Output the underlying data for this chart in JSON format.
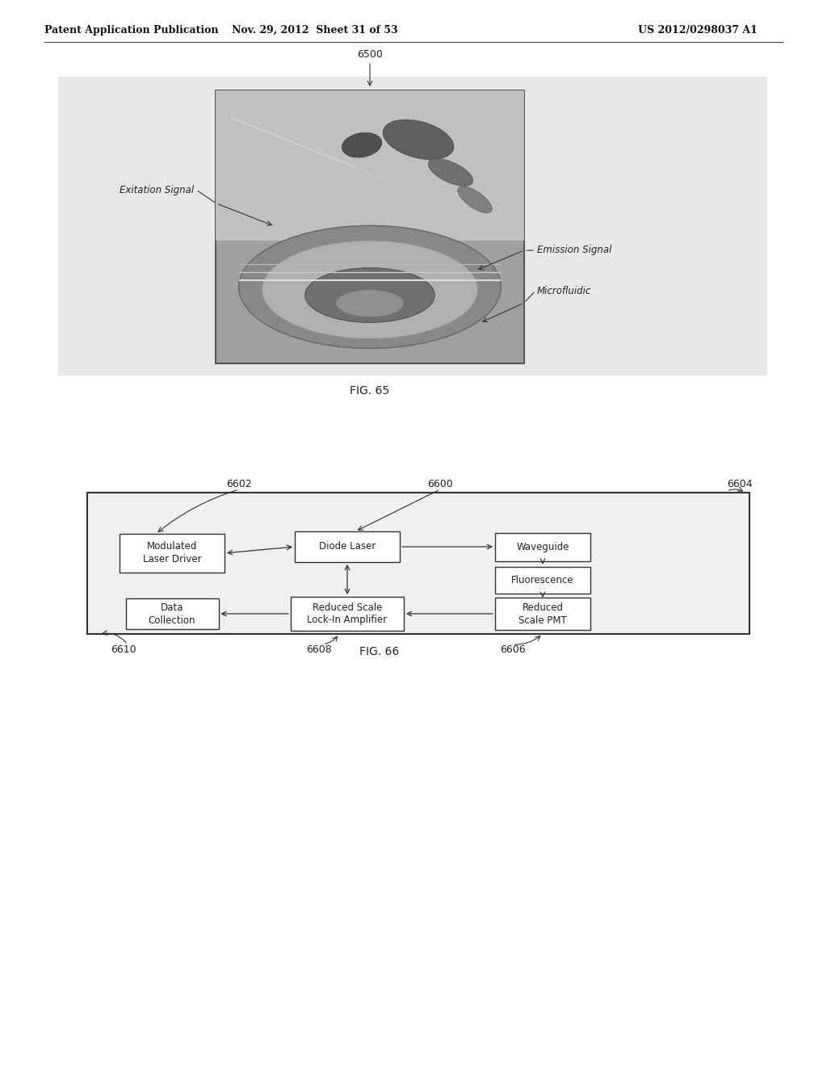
{
  "page_header_left": "Patent Application Publication",
  "page_header_mid": "Nov. 29, 2012  Sheet 31 of 53",
  "page_header_right": "US 2012/0298037 A1",
  "fig65_label": "FIG. 65",
  "fig66_label": "FIG. 66",
  "label_6500": "6500",
  "label_6600": "6600",
  "label_6602": "6602",
  "label_6604": "6604",
  "label_6606": "6606",
  "label_6608": "6608",
  "label_6610": "6610",
  "annotation_exitation": "Exitation Signal",
  "annotation_emission": "Emission Signal",
  "annotation_microfluidic": "Microfluidic",
  "box_diode_laser": "Diode Laser",
  "box_waveguide": "Waveguide",
  "box_fluorescence": "Fluorescence",
  "box_modulated": "Modulated\nLaser Driver",
  "box_data_collection": "Data\nCollection",
  "box_lock_in": "Reduced Scale\nLock-In Amplifier",
  "box_pmt": "Reduced\nScale PMT",
  "bg_color": "#e8e8e8",
  "page_bg": "#ffffff",
  "font_size_header": 9,
  "font_size_label": 9,
  "font_size_box": 8.5,
  "font_size_fig": 10,
  "font_size_annot": 8.5
}
